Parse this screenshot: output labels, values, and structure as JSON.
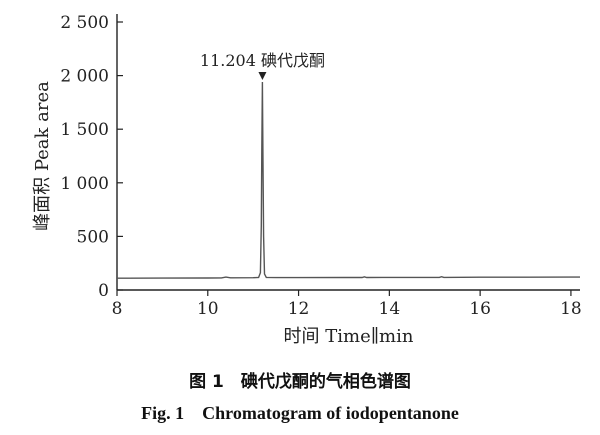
{
  "chart_data": {
    "type": "line",
    "xlabel": "时间 Time∥min",
    "ylabel": "峰面积 Peak area",
    "xlim": [
      8,
      18.2
    ],
    "ylim": [
      0,
      2500
    ],
    "x_ticks": [
      "8",
      "10",
      "12",
      "14",
      "16",
      "18"
    ],
    "y_ticks": [
      "0",
      "500",
      "1 000",
      "1 500",
      "2 000",
      "2 500"
    ],
    "grid": false,
    "series": [
      {
        "x": [
          8.0,
          9.0,
          10.0,
          10.3,
          10.4,
          10.5,
          11.0,
          11.12,
          11.16,
          11.18,
          11.19,
          11.204,
          11.215,
          11.23,
          11.25,
          11.29,
          11.5,
          12.0,
          13.0,
          13.4,
          13.45,
          13.5,
          14.0,
          15.0,
          15.1,
          15.15,
          15.2,
          16.0,
          17.0,
          18.0,
          18.2
        ],
        "y": [
          110,
          111,
          112,
          113,
          120,
          114,
          115,
          117,
          160,
          600,
          1300,
          1940,
          1300,
          500,
          150,
          118,
          116,
          116,
          117,
          117,
          123,
          117,
          118,
          118,
          118,
          124,
          118,
          119,
          119,
          120,
          120
        ]
      }
    ],
    "annotations": [
      {
        "text": "11.204 碘代戊酮",
        "x": 11.204,
        "y": 1940
      }
    ]
  },
  "caption": {
    "cn": "图 1　碘代戊酮的气相色谱图",
    "en": "Fig. 1　Chromatogram of iodopentanone"
  },
  "colors": {
    "line": "#555555",
    "axis": "#222222",
    "text": "#222222"
  }
}
